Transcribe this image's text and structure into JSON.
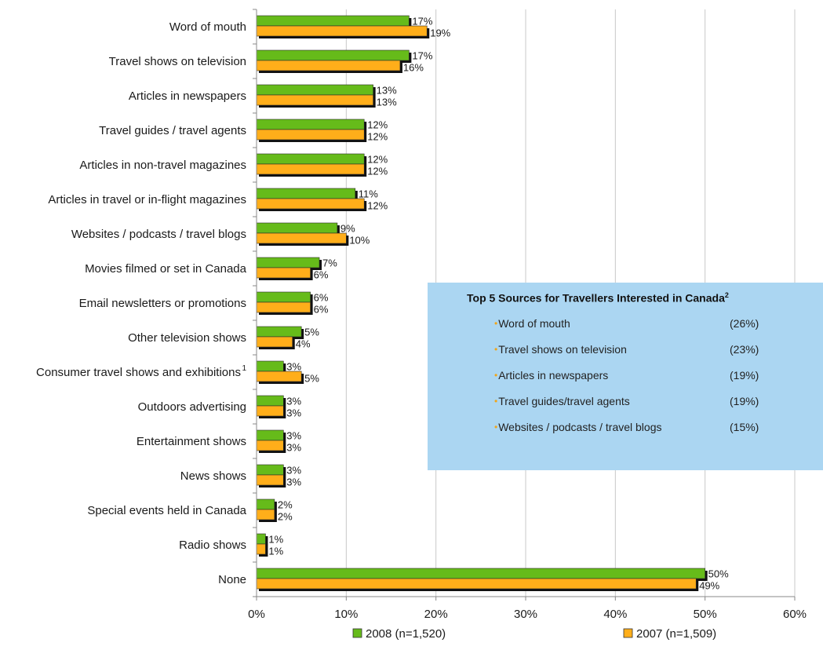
{
  "chart_data": {
    "type": "bar",
    "orientation": "horizontal",
    "categories": [
      "Word of mouth",
      "Travel shows on television",
      "Articles in newspapers",
      "Travel guides / travel agents",
      "Articles in non-travel magazines",
      "Articles in travel or in-flight magazines",
      "Websites / podcasts / travel blogs",
      "Movies filmed or set in Canada",
      "Email newsletters or promotions",
      "Other television shows",
      "Consumer travel shows and exhibitions",
      "Outdoors advertising",
      "Entertainment shows",
      "News shows",
      "Special events held in Canada",
      "Radio shows",
      "None"
    ],
    "category_superscripts": [
      "",
      "",
      "",
      "",
      "",
      "",
      "",
      "",
      "",
      "",
      "1",
      "",
      "",
      "",
      "",
      "",
      ""
    ],
    "series": [
      {
        "name": "2008 (n=1,520)",
        "color": "#66bb1a",
        "values": [
          17,
          17,
          13,
          12,
          12,
          11,
          9,
          7,
          6,
          5,
          3,
          3,
          3,
          3,
          2,
          1,
          50
        ]
      },
      {
        "name": "2007 (n=1,509)",
        "color": "#ffae1a",
        "values": [
          19,
          16,
          13,
          12,
          12,
          12,
          10,
          6,
          6,
          4,
          5,
          3,
          3,
          3,
          2,
          1,
          49
        ]
      }
    ],
    "value_suffix": "%",
    "xlim": [
      0,
      60
    ],
    "xticks": [
      0,
      10,
      20,
      30,
      40,
      50,
      60
    ],
    "xtick_labels": [
      "0%",
      "10%",
      "20%",
      "30%",
      "40%",
      "50%",
      "60%"
    ],
    "grid": "vertical",
    "legend_position": "bottom"
  },
  "inset": {
    "title": "Top 5 Sources for Travellers Interested in Canada",
    "title_superscript": "2",
    "items": [
      {
        "label": "Word of mouth",
        "value": "(26%)"
      },
      {
        "label": "Travel shows on television",
        "value": "(23%)"
      },
      {
        "label": "Articles in newspapers",
        "value": "(19%)"
      },
      {
        "label": "Travel guides/travel agents",
        "value": "(19%)"
      },
      {
        "label": "Websites / podcasts / travel blogs",
        "value": "(15%)"
      }
    ],
    "bullet_color": "#f0a51a",
    "background": "#abd6f2"
  }
}
